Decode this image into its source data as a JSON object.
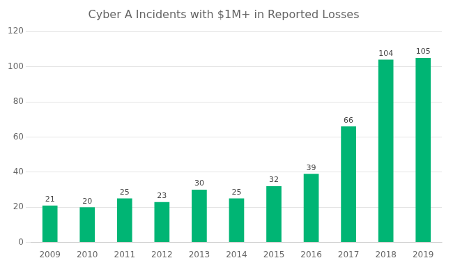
{
  "chart_data": {
    "type": "bar",
    "title": "Cyber A Incidents with $1M+ in Reported Losses",
    "categories": [
      "2009",
      "2010",
      "2011",
      "2012",
      "2013",
      "2014",
      "2015",
      "2016",
      "2017",
      "2018",
      "2019"
    ],
    "values": [
      21,
      20,
      25,
      23,
      30,
      25,
      32,
      39,
      66,
      104,
      105
    ],
    "color": "#00B574",
    "ylim": [
      0,
      120
    ],
    "yticks": [
      0,
      20,
      40,
      60,
      80,
      100,
      120
    ],
    "grid": true,
    "data_labels": true
  }
}
